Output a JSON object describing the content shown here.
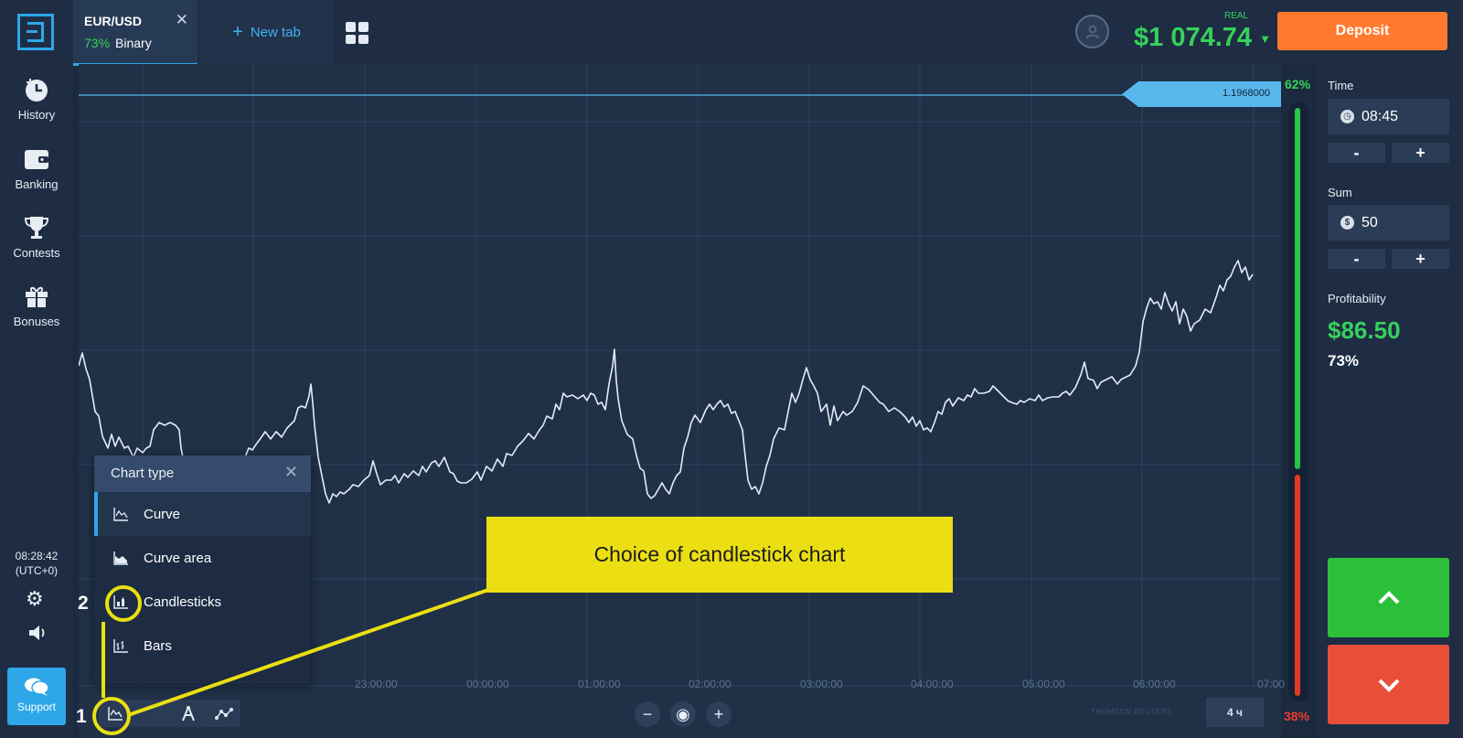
{
  "tabs": {
    "active": {
      "title": "EUR/USD",
      "percent": "73%",
      "mode": "Binary"
    },
    "new_tab_label": "New tab"
  },
  "account": {
    "type": "REAL",
    "balance": "$1 074.74"
  },
  "deposit_label": "Deposit",
  "sidebar": {
    "items": [
      {
        "label": "History",
        "icon": "history-icon"
      },
      {
        "label": "Banking",
        "icon": "wallet-icon"
      },
      {
        "label": "Contests",
        "icon": "trophy-icon"
      },
      {
        "label": "Bonuses",
        "icon": "gift-icon"
      }
    ],
    "clock": {
      "time": "08:28:42",
      "zone": "(UTC+0)"
    },
    "support_label": "Support"
  },
  "chart": {
    "current_price": "1.1968000",
    "time_labels": [
      "23:00:00",
      "00:00:00",
      "01:00:00",
      "02:00:00",
      "03:00:00",
      "04:00:00",
      "05:00:00",
      "06:00:00",
      "07:00"
    ],
    "period": "4 ч",
    "vendor": "THOMSON REUTERS",
    "zoom": {
      "out": "−",
      "reset": "◉",
      "in": "+"
    }
  },
  "sentiment": {
    "up": "62%",
    "down": "38%",
    "up_fraction": 0.62
  },
  "trade_panel": {
    "time_label": "Time",
    "time_value": "08:45",
    "sum_label": "Sum",
    "sum_value": "50",
    "sum_currency_symbol": "$",
    "minus": "-",
    "plus": "+",
    "profitability_label": "Profitability",
    "profit_value": "$86.50",
    "profit_percent": "73%"
  },
  "chart_type_panel": {
    "title": "Chart type",
    "items": [
      {
        "label": "Curve",
        "icon": "curve-icon",
        "selected": true
      },
      {
        "label": "Curve area",
        "icon": "curve-area-icon",
        "selected": false
      },
      {
        "label": "Candlesticks",
        "icon": "candlestick-icon",
        "selected": false
      },
      {
        "label": "Bars",
        "icon": "bars-icon",
        "selected": false
      }
    ]
  },
  "annotation": {
    "callout_text": "Choice of candlestick chart",
    "step_1": "1",
    "step_2": "2",
    "color": "#ebdf13"
  }
}
